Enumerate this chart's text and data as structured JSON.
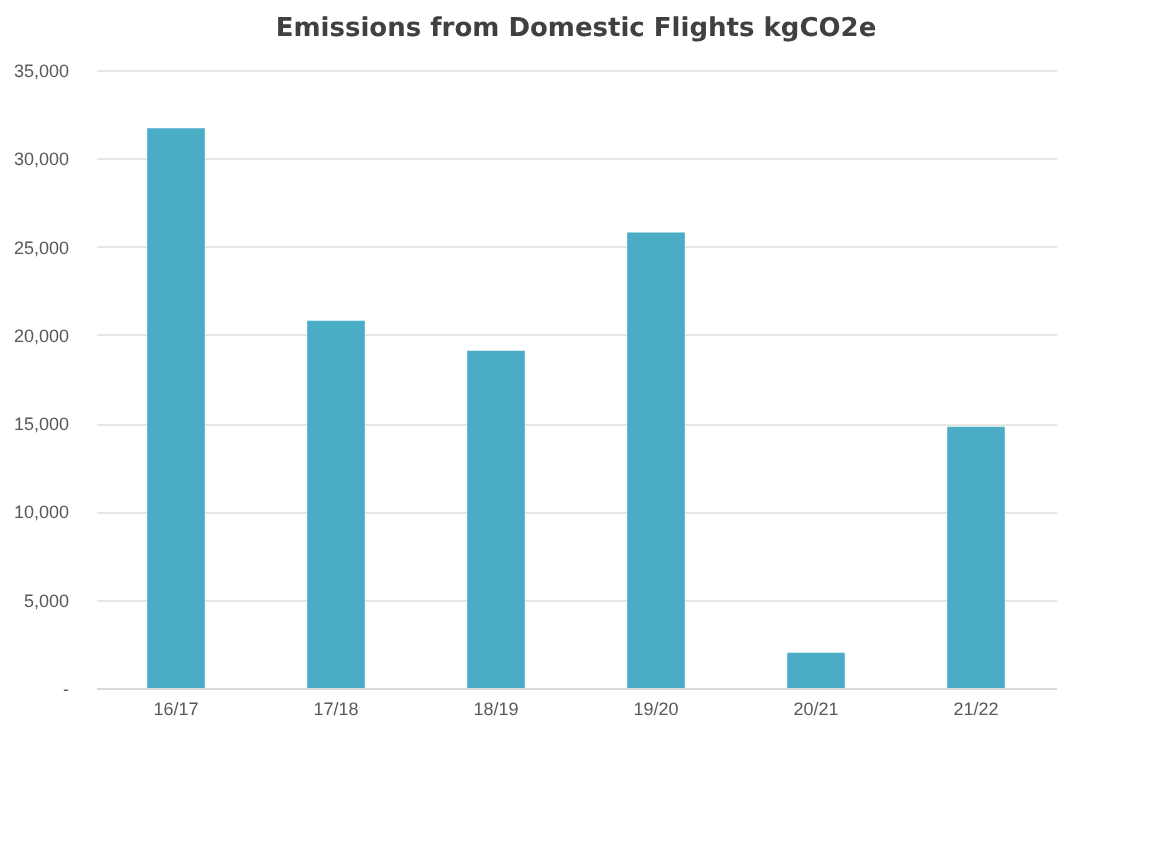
{
  "chart_data": {
    "type": "bar",
    "title": "Emissions from Domestic Flights kgCO2e",
    "categories": [
      "16/17",
      "17/18",
      "18/19",
      "19/20",
      "20/21",
      "21/22"
    ],
    "values": [
      31700,
      20800,
      19100,
      25800,
      2000,
      14800
    ],
    "color": "#4bacc6",
    "ylim": [
      0,
      35000
    ],
    "yticks": [
      {
        "value": 0,
        "label": "-"
      },
      {
        "value": 5000,
        "label": "5,000"
      },
      {
        "value": 10000,
        "label": "10,000"
      },
      {
        "value": 15000,
        "label": "15,000"
      },
      {
        "value": 20000,
        "label": "20,000"
      },
      {
        "value": 25000,
        "label": "25,000"
      },
      {
        "value": 30000,
        "label": "30,000"
      },
      {
        "value": 35000,
        "label": "35,000"
      }
    ],
    "grid": "y"
  }
}
